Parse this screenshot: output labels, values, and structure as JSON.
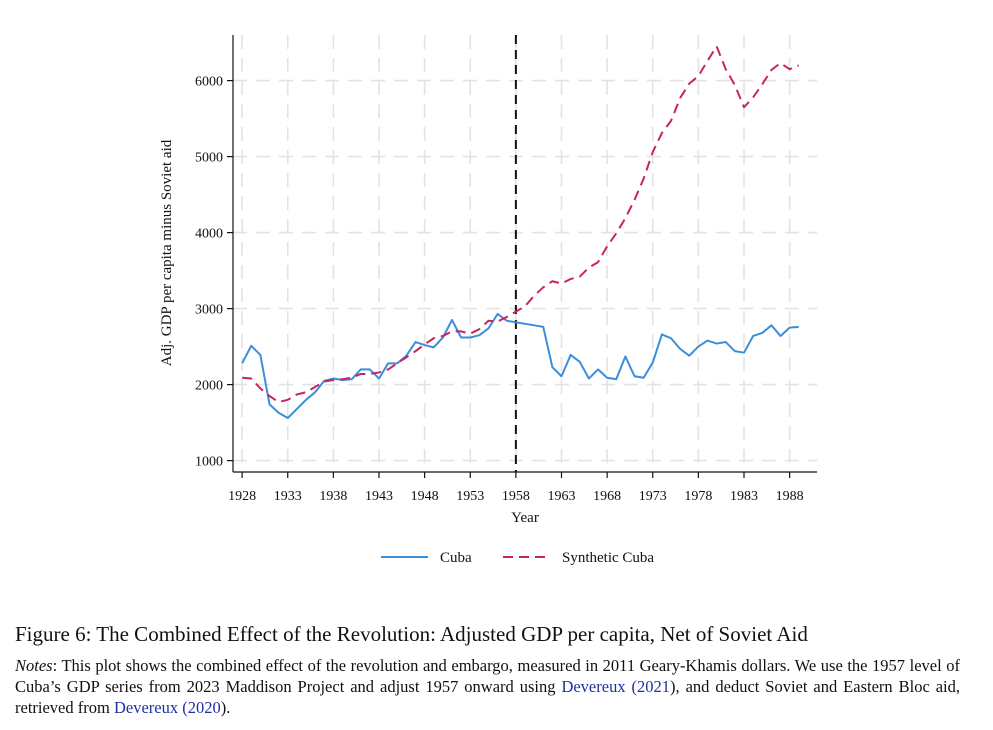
{
  "chart_data": {
    "type": "line",
    "title": "",
    "xlabel": "Year",
    "ylabel": "Adj. GDP per capita minus Soviet aid",
    "xlim": [
      1927,
      1991
    ],
    "ylim": [
      850,
      6600
    ],
    "grid": true,
    "x_ticks": [
      1928,
      1933,
      1938,
      1943,
      1948,
      1953,
      1958,
      1963,
      1968,
      1973,
      1978,
      1983,
      1988
    ],
    "y_ticks": [
      1000,
      2000,
      3000,
      4000,
      5000,
      6000
    ],
    "vline": {
      "x": 1958,
      "style": "dashed"
    },
    "legend_position": "bottom",
    "series": [
      {
        "name": "Cuba",
        "color": "#3a8fdc",
        "dash": "solid",
        "x": [
          1928,
          1929,
          1930,
          1931,
          1932,
          1933,
          1934,
          1935,
          1936,
          1937,
          1938,
          1939,
          1940,
          1941,
          1942,
          1943,
          1944,
          1945,
          1946,
          1947,
          1948,
          1949,
          1950,
          1951,
          1952,
          1953,
          1954,
          1955,
          1956,
          1957,
          1958,
          1959,
          1960,
          1961,
          1962,
          1963,
          1964,
          1965,
          1966,
          1967,
          1968,
          1969,
          1970,
          1971,
          1972,
          1973,
          1974,
          1975,
          1976,
          1977,
          1978,
          1979,
          1980,
          1981,
          1982,
          1983,
          1984,
          1985,
          1986,
          1987,
          1988,
          1989
        ],
        "values": [
          2280,
          2510,
          2390,
          1740,
          1630,
          1560,
          1680,
          1800,
          1900,
          2050,
          2080,
          2060,
          2070,
          2200,
          2200,
          2080,
          2280,
          2280,
          2380,
          2560,
          2520,
          2490,
          2620,
          2850,
          2620,
          2620,
          2650,
          2740,
          2930,
          2840,
          2820,
          2800,
          2780,
          2760,
          2230,
          2110,
          2390,
          2300,
          2080,
          2200,
          2090,
          2070,
          2370,
          2110,
          2090,
          2290,
          2660,
          2610,
          2470,
          2380,
          2500,
          2580,
          2540,
          2560,
          2440,
          2420,
          2640,
          2680,
          2780,
          2640,
          2750,
          2760
        ]
      },
      {
        "name": "Synthetic Cuba",
        "color": "#c8245f",
        "dash": "dashed",
        "x": [
          1928,
          1929,
          1930,
          1931,
          1932,
          1933,
          1934,
          1935,
          1936,
          1937,
          1938,
          1939,
          1940,
          1941,
          1942,
          1943,
          1944,
          1945,
          1946,
          1947,
          1948,
          1949,
          1950,
          1951,
          1952,
          1953,
          1954,
          1955,
          1956,
          1957,
          1958,
          1959,
          1960,
          1961,
          1962,
          1963,
          1964,
          1965,
          1966,
          1967,
          1968,
          1969,
          1970,
          1971,
          1972,
          1973,
          1974,
          1975,
          1976,
          1977,
          1978,
          1979,
          1980,
          1981,
          1982,
          1983,
          1984,
          1985,
          1986,
          1987,
          1988,
          1989
        ],
        "values": [
          2090,
          2080,
          1950,
          1850,
          1770,
          1800,
          1870,
          1900,
          1970,
          2040,
          2060,
          2070,
          2090,
          2140,
          2140,
          2160,
          2200,
          2280,
          2360,
          2440,
          2530,
          2610,
          2640,
          2700,
          2700,
          2670,
          2730,
          2840,
          2830,
          2890,
          2960,
          3030,
          3170,
          3280,
          3360,
          3330,
          3390,
          3420,
          3540,
          3610,
          3820,
          3990,
          4190,
          4430,
          4710,
          5060,
          5310,
          5470,
          5770,
          5960,
          6060,
          6260,
          6450,
          6150,
          5940,
          5650,
          5780,
          5950,
          6140,
          6230,
          6150,
          6200
        ]
      }
    ]
  },
  "caption": {
    "title": "Figure 6:  The Combined Effect of the Revolution:  Adjusted GDP per capita, Net of Soviet Aid",
    "notes_label": "Notes",
    "notes_part1": ": This plot shows the combined effect of the revolution and embargo, measured in 2011 Geary-Khamis dollars. We use the 1957 level of Cuba’s GDP series from 2023 Maddison Project and adjust 1957 onward using ",
    "cite1_name": "Devereux",
    "cite1_year": "2021",
    "notes_part2": "), and deduct Soviet and Eastern Bloc aid, retrieved from ",
    "cite2_name": "Devereux",
    "cite2_year": "2020",
    "notes_part3": ")."
  }
}
